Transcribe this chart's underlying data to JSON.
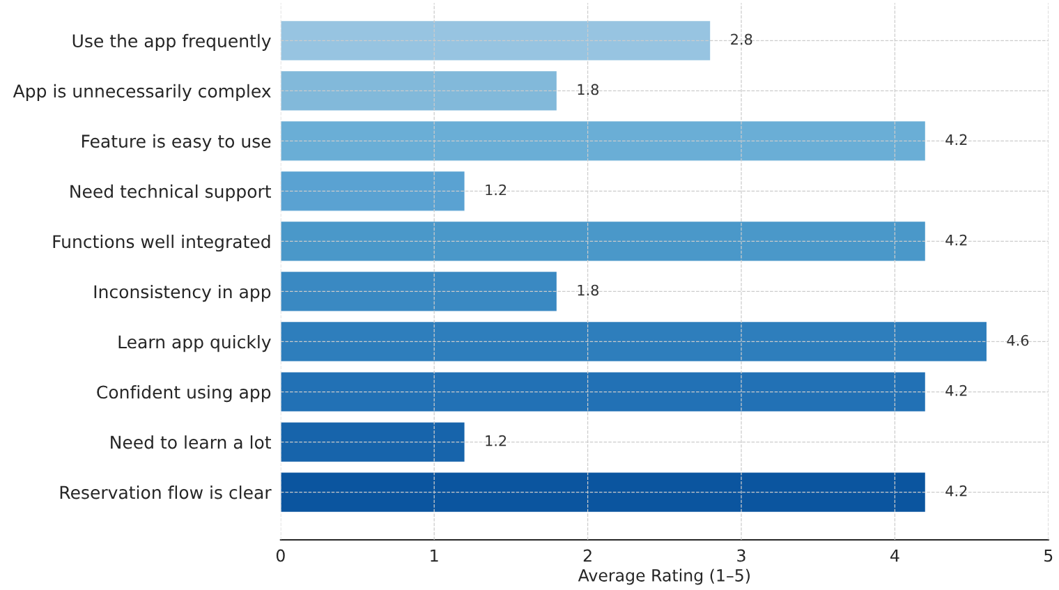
{
  "chart_data": {
    "type": "bar",
    "orientation": "horizontal",
    "xlabel": "Average Rating (1–5)",
    "categories": [
      "Use the app frequently",
      "App is unnecessarily complex",
      "Feature is easy to use",
      "Need technical support",
      "Functions well integrated",
      "Inconsistency in app",
      "Learn app quickly",
      "Confident using app",
      "Need to learn a lot",
      "Reservation flow is clear"
    ],
    "values": [
      2.8,
      1.8,
      4.2,
      1.2,
      4.2,
      1.8,
      4.6,
      4.2,
      1.2,
      4.2
    ],
    "colors": [
      "#97c4e1",
      "#82b9da",
      "#6aaed6",
      "#5aa2d2",
      "#4a98c9",
      "#3a89c2",
      "#2e7ebc",
      "#2271b5",
      "#1764ab",
      "#0b559f"
    ],
    "xlim": [
      0,
      5
    ],
    "xticks": [
      0,
      1,
      2,
      3,
      4,
      5
    ],
    "grid": true,
    "data_labels": true
  }
}
